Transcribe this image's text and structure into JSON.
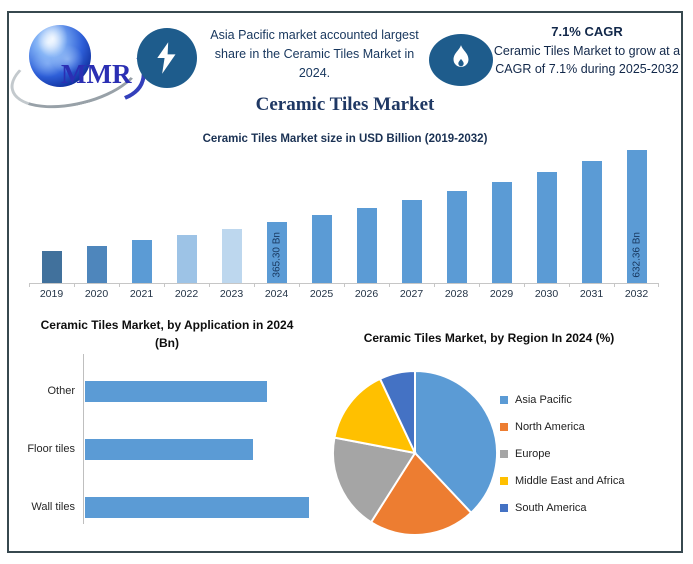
{
  "header": {
    "logo": {
      "text": "MMR"
    },
    "left_icon": "lightning-icon",
    "left_note": "Asia Pacific market accounted largest share in the Ceramic Tiles Market in 2024.",
    "right_icon": "flame-icon",
    "cagr_title": "7.1% CAGR",
    "cagr_note": "Ceramic Tiles Market to grow at a CAGR of 7.1% during 2025-2032",
    "icon_circle_color": "#1E5C8C"
  },
  "main_title": "Ceramic Tiles Market",
  "colors": {
    "accent_blue": "#5B9BD5",
    "navy_text": "#1F3864",
    "frame_border": "#37484F",
    "axis_gray": "#C6C6C6"
  },
  "chart_data": [
    {
      "id": "market-size-by-year",
      "type": "bar",
      "title": "Ceramic Tiles Market size in USD Billion (2019-2032)",
      "ylabel": "USD Billion",
      "categories": [
        "2019",
        "2020",
        "2021",
        "2022",
        "2023",
        "2024",
        "2025",
        "2026",
        "2027",
        "2028",
        "2029",
        "2030",
        "2031",
        "2032"
      ],
      "values": [
        259.36,
        277.77,
        297.49,
        318.62,
        341.24,
        365.3,
        391.24,
        419.01,
        448.76,
        480.63,
        514.75,
        551.3,
        590.44,
        632.36
      ],
      "value_labels": [
        "",
        "",
        "",
        "",
        "",
        "365.30 Bn",
        "",
        "",
        "",
        "",
        "",
        "",
        "",
        "632.36 Bn"
      ],
      "bar_colors": [
        "#41719C",
        "#4E86BC",
        "#5B9BD5",
        "#9DC3E6",
        "#BDD7EE",
        "#5B9BD5",
        "#5B9BD5",
        "#5B9BD5",
        "#5B9BD5",
        "#5B9BD5",
        "#5B9BD5",
        "#5B9BD5",
        "#5B9BD5",
        "#5B9BD5"
      ],
      "grid": false
    },
    {
      "id": "by-application-2024",
      "type": "bar",
      "orientation": "horizontal",
      "title": "Ceramic Tiles Market, by Application in 2024 (Bn)",
      "categories": [
        "Other",
        "Floor tiles",
        "Wall tiles"
      ],
      "values": [
        116,
        107,
        143
      ],
      "bar_color": "#5B9BD5",
      "grid": false
    },
    {
      "id": "by-region-2024",
      "type": "pie",
      "title": "Ceramic Tiles Market, by Region In 2024 (%)",
      "labels": [
        "Asia Pacific",
        "North America",
        "Europe",
        "Middle East and Africa",
        "South America"
      ],
      "values": [
        38,
        21,
        19,
        15,
        7
      ],
      "colors": [
        "#5B9BD5",
        "#ED7D31",
        "#A5A5A5",
        "#FFC000",
        "#4472C4"
      ],
      "legend_position": "right",
      "start_angle_deg": 0,
      "direction": "clockwise"
    }
  ]
}
